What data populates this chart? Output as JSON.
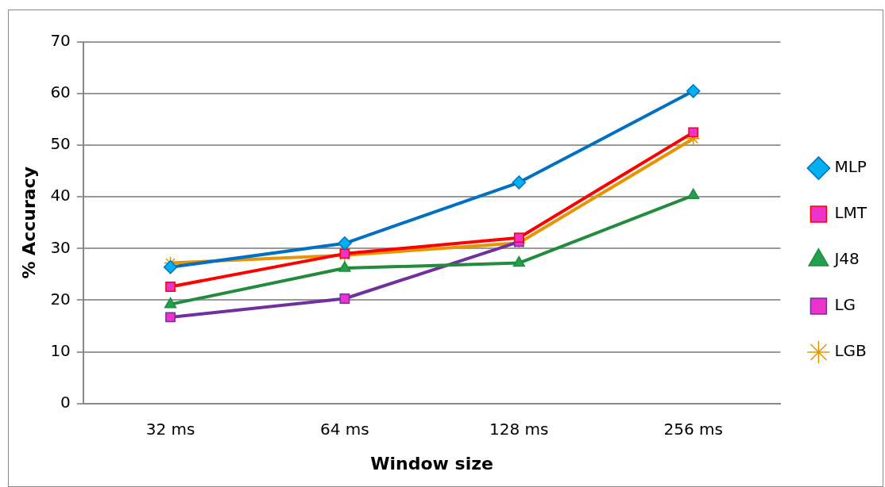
{
  "chart_data": {
    "type": "line",
    "xlabel": "Window size",
    "ylabel": "% Accuracy",
    "categories": [
      "32 ms",
      "64 ms",
      "128 ms",
      "256 ms"
    ],
    "series": [
      {
        "name": "MLP",
        "color": "#0070c0",
        "marker": "diamond",
        "values": [
          26.4,
          31,
          42.8,
          60.5
        ]
      },
      {
        "name": "LMT",
        "color": "#ff0000",
        "marker": "square",
        "values": [
          22.6,
          29,
          32.1,
          52.5
        ]
      },
      {
        "name": "J48",
        "color": "#228b3c",
        "marker": "triangle",
        "values": [
          19.2,
          26.2,
          27.2,
          40.3
        ]
      },
      {
        "name": "LG",
        "color": "#7030a0",
        "marker": "square",
        "values": [
          16.7,
          20.3,
          31.3,
          null
        ]
      },
      {
        "name": "LGB",
        "color": "#e69500",
        "marker": "cross",
        "values": [
          27.2,
          28.7,
          31.1,
          51.3
        ]
      }
    ],
    "ylim": [
      0,
      70
    ],
    "yticks": [
      0,
      10,
      20,
      30,
      40,
      50,
      60,
      70
    ],
    "grid": "y",
    "legend": "right",
    "line_style": "solid"
  }
}
